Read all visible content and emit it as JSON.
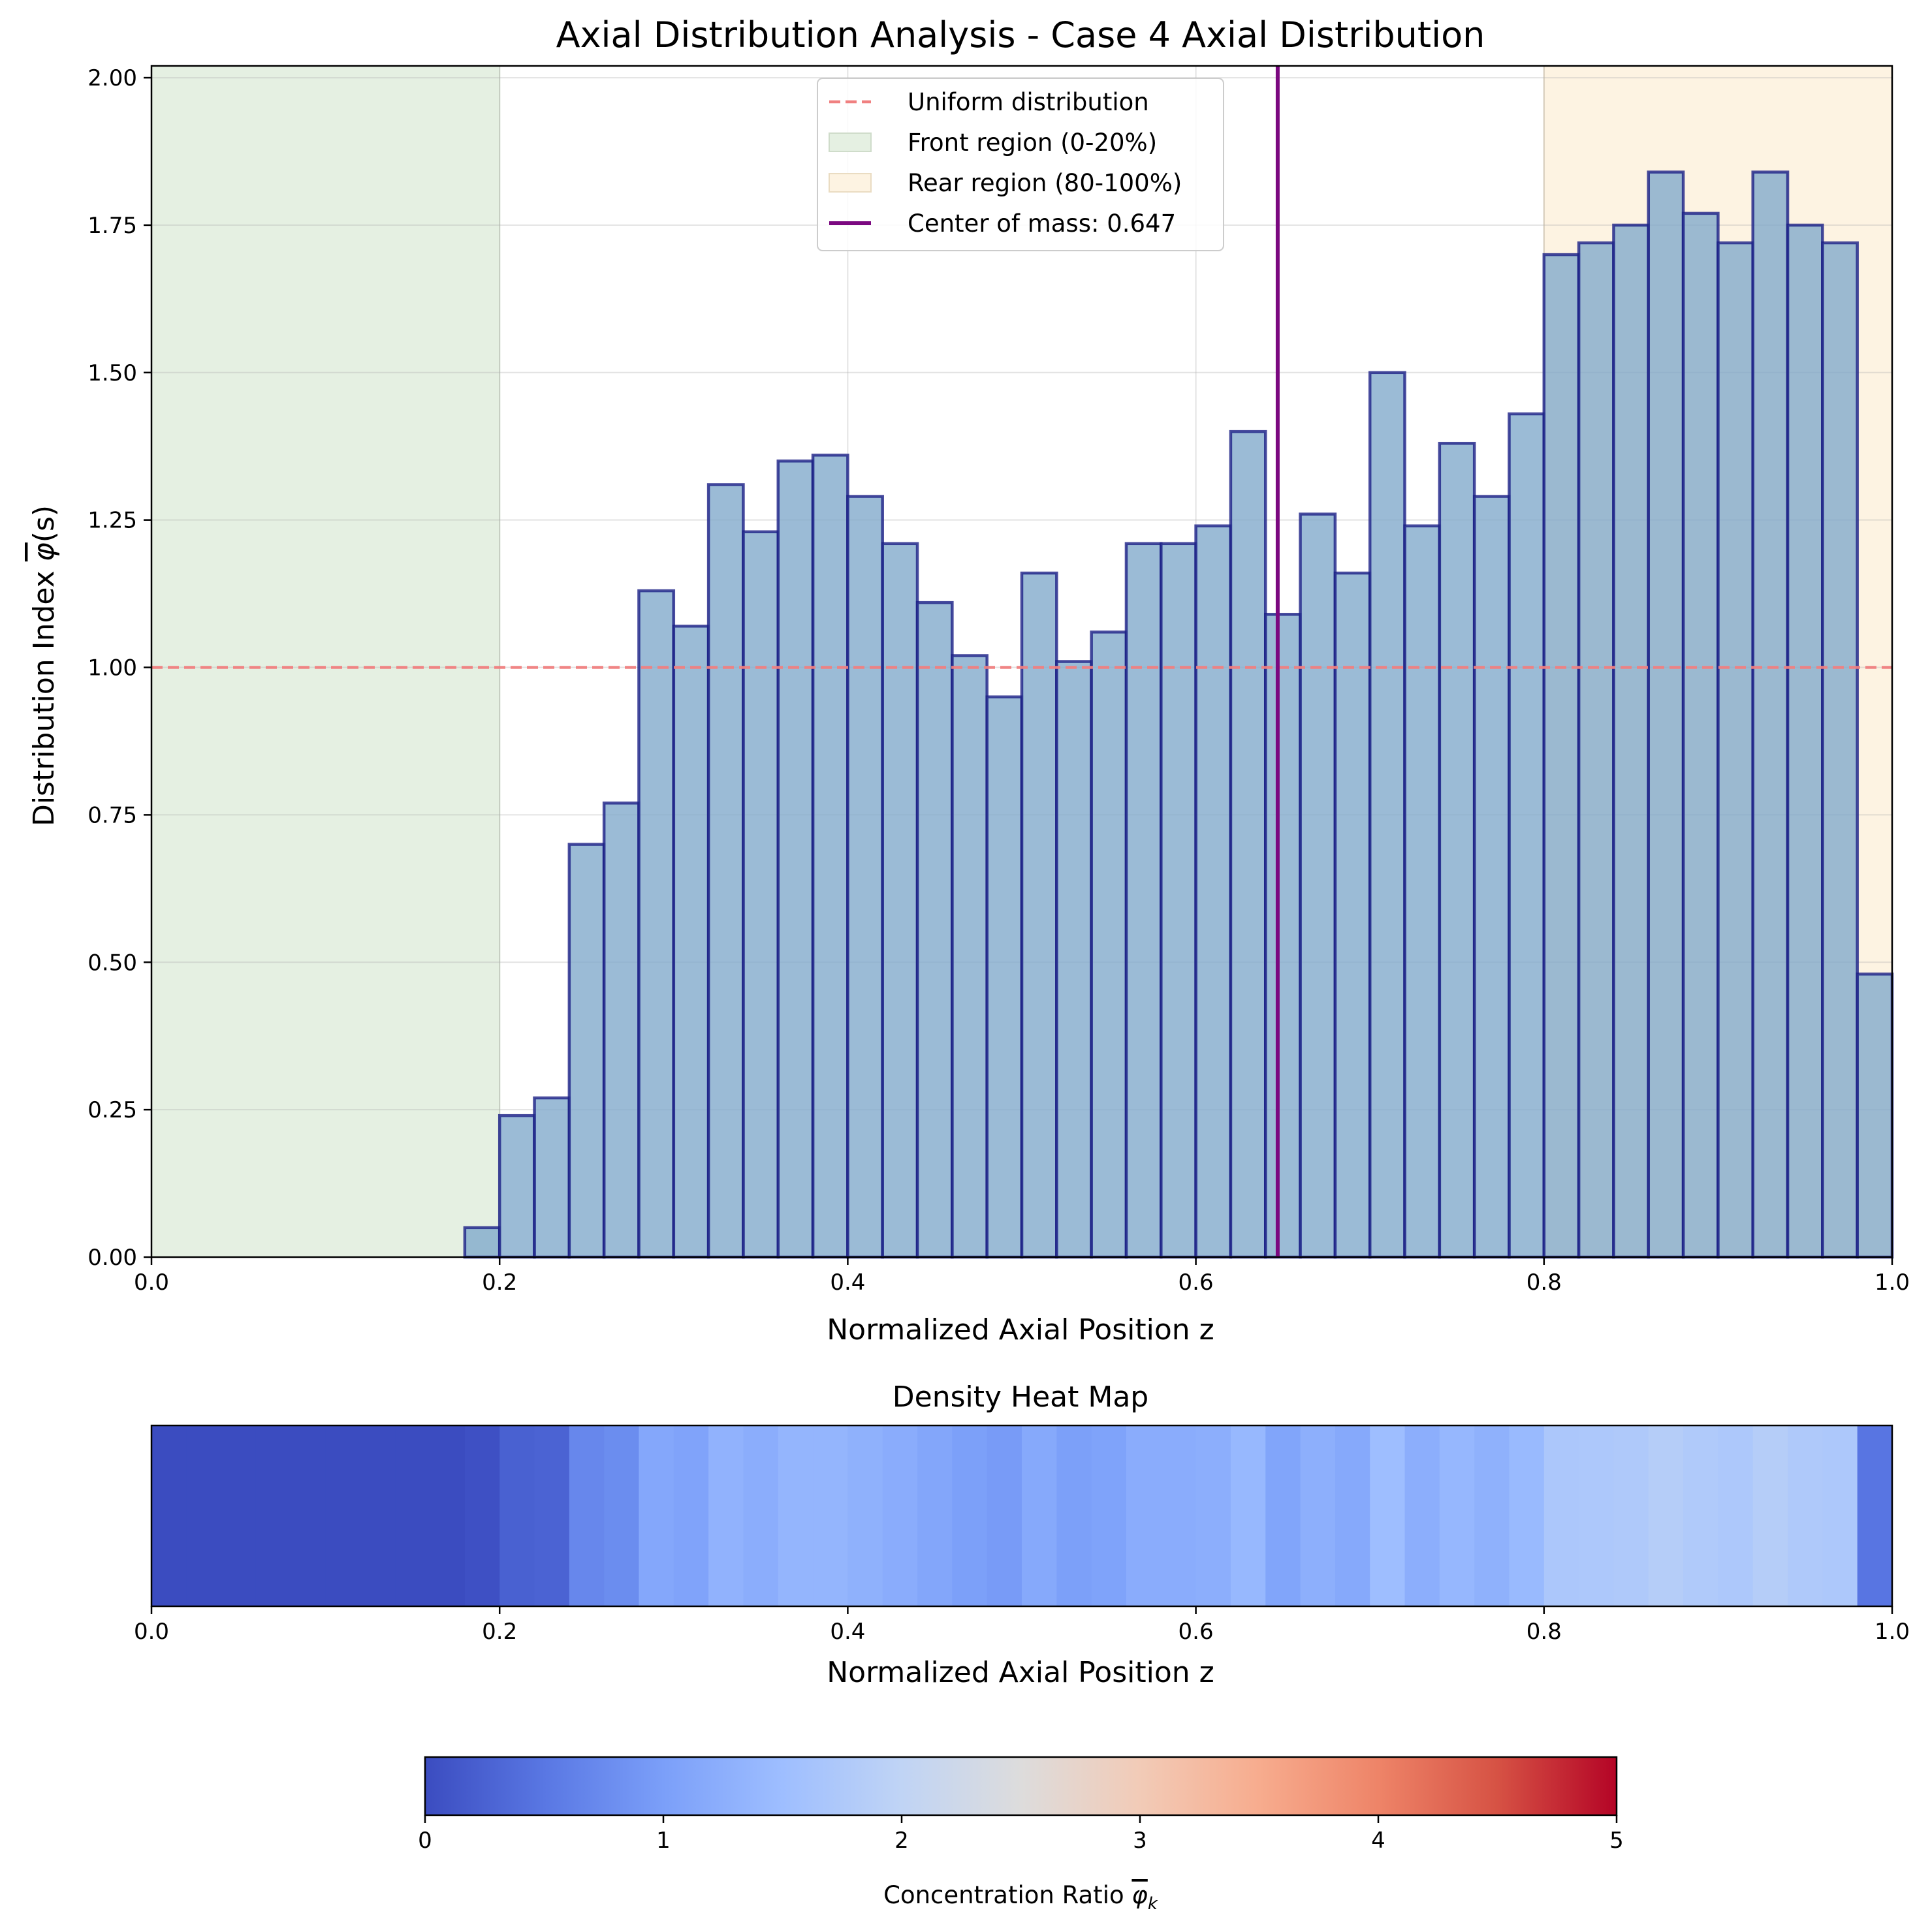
{
  "main_title": "Axial Distribution Analysis - Case 4 Axial Distribution",
  "heatmap_title": "Density Heat Map",
  "colorbar_label": "Concentration Ratio",
  "colorbar_symbol": "φ",
  "colorbar_symbol_sub": "k",
  "colors": {
    "bar_fill": "#7fa8ca",
    "bar_edge": "#1b1f86",
    "uniform_line": "#f08080",
    "front_region": "#e5f0e2",
    "rear_region": "#fdf3e2",
    "center_line": "#7b0880"
  },
  "chart_data": [
    {
      "type": "bar",
      "xlabel": "Normalized Axial Position z",
      "ylabel": "Distribution Index",
      "ylabel_symbol": "φ",
      "ylabel_suffix": "(s)",
      "xlim": [
        0.0,
        1.0
      ],
      "ylim": [
        0.0,
        2.02
      ],
      "grid": true,
      "xticks": [
        "0.0",
        "0.2",
        "0.4",
        "0.6",
        "0.8",
        "1.0"
      ],
      "yticks": [
        "0.00",
        "0.25",
        "0.50",
        "0.75",
        "1.00",
        "1.25",
        "1.50",
        "1.75",
        "2.00"
      ],
      "bin_width": 0.02,
      "bin_starts": [
        0.18,
        0.2,
        0.22,
        0.24,
        0.26,
        0.28,
        0.3,
        0.32,
        0.34,
        0.36,
        0.38,
        0.4,
        0.42,
        0.44,
        0.46,
        0.48,
        0.5,
        0.52,
        0.54,
        0.56,
        0.58,
        0.6,
        0.62,
        0.64,
        0.66,
        0.68,
        0.7,
        0.72,
        0.74,
        0.76,
        0.78,
        0.8,
        0.82,
        0.84,
        0.86,
        0.88,
        0.9,
        0.92,
        0.94,
        0.96,
        0.98
      ],
      "values": [
        0.05,
        0.24,
        0.27,
        0.7,
        0.77,
        1.13,
        1.07,
        1.31,
        1.23,
        1.35,
        1.36,
        1.29,
        1.21,
        1.11,
        1.02,
        0.95,
        1.16,
        1.01,
        1.06,
        1.21,
        1.21,
        1.24,
        1.4,
        1.09,
        1.26,
        1.16,
        1.5,
        1.24,
        1.38,
        1.29,
        1.43,
        1.7,
        1.72,
        1.75,
        1.84,
        1.77,
        1.72,
        1.84,
        1.75,
        1.72,
        0.48
      ],
      "uniform_value": 1.0,
      "front_region": [
        0.0,
        0.2
      ],
      "rear_region": [
        0.8,
        1.0
      ],
      "center_of_mass": 0.647,
      "legend": {
        "placement": "top-center",
        "entries": [
          {
            "label": "Uniform distribution",
            "kind": "dashed-line"
          },
          {
            "label": "Front region (0-20%)",
            "kind": "patch-front"
          },
          {
            "label": "Rear region (80-100%)",
            "kind": "patch-rear"
          },
          {
            "label": "Center of mass: 0.647",
            "kind": "solid-line"
          }
        ]
      }
    },
    {
      "type": "heatmap",
      "xlabel": "Normalized Axial Position z",
      "xlim": [
        0.0,
        1.0
      ],
      "xticks": [
        "0.0",
        "0.2",
        "0.4",
        "0.6",
        "0.8",
        "1.0"
      ],
      "colormap": "coolwarm",
      "vmin": 0,
      "vmax": 5
    },
    {
      "type": "colorbar",
      "range": [
        0,
        5
      ],
      "ticks": [
        "0",
        "1",
        "2",
        "3",
        "4",
        "5"
      ]
    }
  ]
}
